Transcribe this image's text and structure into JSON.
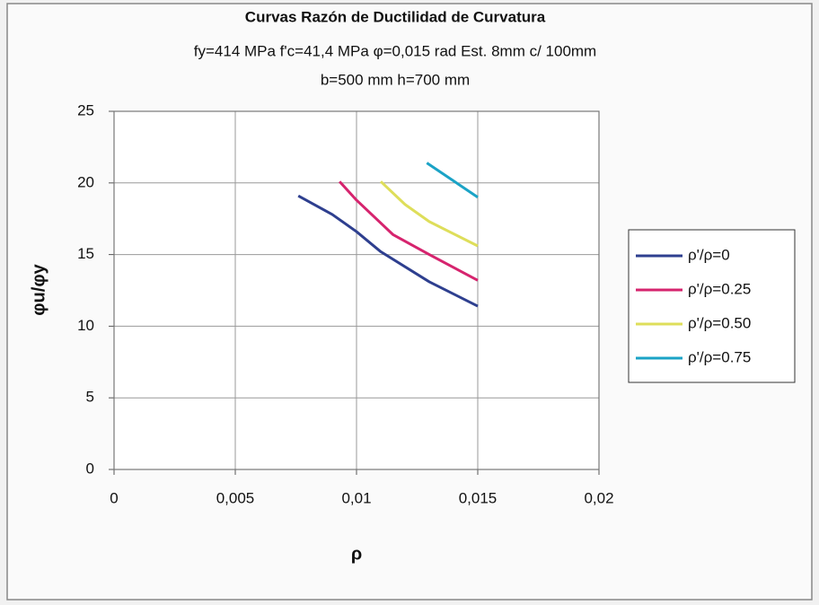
{
  "chart_data": {
    "type": "line",
    "title": "Curvas Razón de Ductilidad de Curvatura",
    "subtitle": [
      "fy=414 MPa f'c=41,4 MPa φ=0,015 rad Est. 8mm c/ 100mm",
      "b=500 mm h=700 mm"
    ],
    "x_label": "ρ",
    "y_label": "φu/φy",
    "xlim": [
      0,
      0.02
    ],
    "xticks": [
      0,
      {
        "value": 0.005,
        "label": "0,005"
      },
      {
        "value": 0.01,
        "label": "0,01"
      },
      {
        "value": 0.015,
        "label": "0,015"
      },
      {
        "value": 0.02,
        "label": "0,02"
      }
    ],
    "ylim": [
      0,
      25
    ],
    "yticks": [
      0,
      5,
      10,
      15,
      20,
      25
    ],
    "grid": true,
    "legend": "right",
    "series": [
      {
        "name": "ρ'/ρ=0",
        "color": "#2e3f8f",
        "x": [
          0.0076,
          0.009,
          0.01,
          0.011,
          0.013,
          0.015
        ],
        "values": [
          19.1,
          17.8,
          16.6,
          15.2,
          13.1,
          11.4
        ]
      },
      {
        "name": "ρ'/ρ=0.25",
        "color": "#d6246e",
        "x": [
          0.0093,
          0.01,
          0.0115,
          0.013,
          0.015
        ],
        "values": [
          20.1,
          18.8,
          16.4,
          15.0,
          13.2
        ]
      },
      {
        "name": "ρ'/ρ=0.50",
        "color": "#dede5a",
        "x": [
          0.011,
          0.012,
          0.013,
          0.015
        ],
        "values": [
          20.1,
          18.5,
          17.3,
          15.6
        ]
      },
      {
        "name": "ρ'/ρ=0.75",
        "color": "#1ba3c6",
        "x": [
          0.0129,
          0.015
        ],
        "values": [
          21.4,
          19.0
        ]
      }
    ]
  }
}
